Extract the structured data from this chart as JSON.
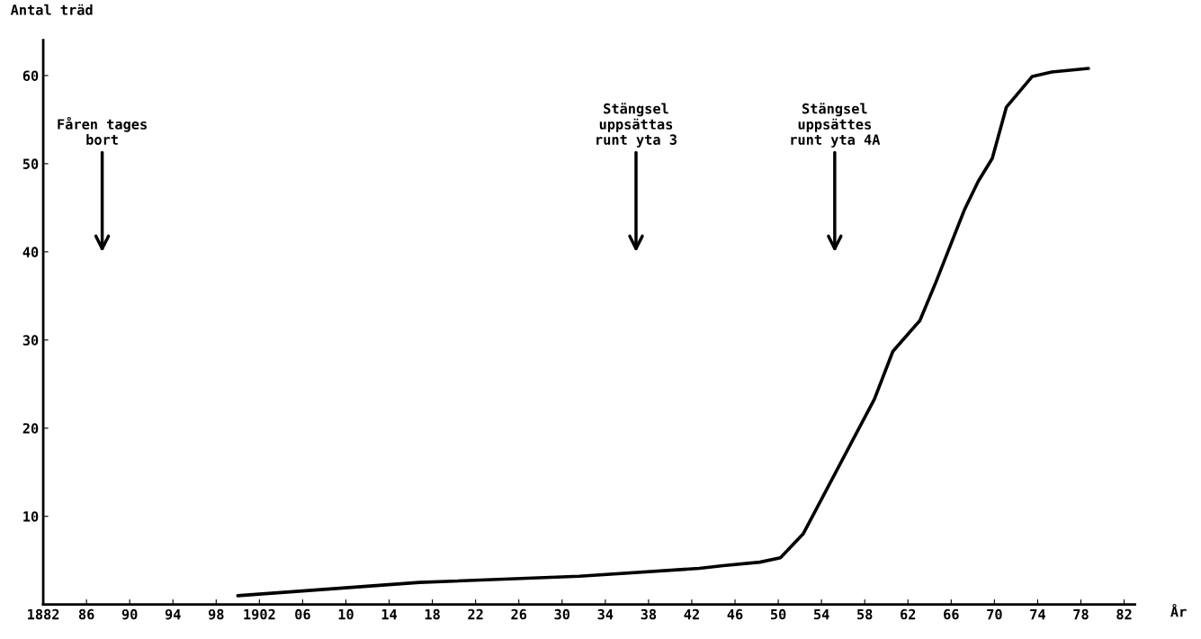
{
  "chart_data": {
    "type": "line",
    "ylabel": "Antal träd",
    "xlabel": "År",
    "x": [
      1900.0,
      1916.8,
      1931.6,
      1942.7,
      1944.9,
      1948.3,
      1950.2,
      1952.3,
      1958.9,
      1960.6,
      1963.1,
      1964.6,
      1967.2,
      1968.5,
      1969.8,
      1971.1,
      1973.5,
      1975.3,
      1978.7
    ],
    "series": [
      {
        "color": "#000000",
        "values": [
          1.0,
          2.5,
          3.2,
          4.1,
          4.4,
          4.8,
          5.3,
          8.0,
          23.3,
          28.7,
          32.2,
          36.6,
          44.7,
          48.0,
          50.6,
          56.4,
          59.9,
          60.4,
          60.8
        ]
      }
    ],
    "xlim": [
      1882,
      1983
    ],
    "ylim": [
      0,
      64
    ],
    "xticks": [
      1882,
      {
        "value": 1886,
        "label": "86"
      },
      {
        "value": 1890,
        "label": "90"
      },
      {
        "value": 1894,
        "label": "94"
      },
      {
        "value": 1898,
        "label": "98"
      },
      1902,
      {
        "value": 1906,
        "label": "06"
      },
      {
        "value": 1910,
        "label": "10"
      },
      {
        "value": 1914,
        "label": "14"
      },
      {
        "value": 1918,
        "label": "18"
      },
      {
        "value": 1922,
        "label": "22"
      },
      {
        "value": 1926,
        "label": "26"
      },
      {
        "value": 1930,
        "label": "30"
      },
      {
        "value": 1934,
        "label": "34"
      },
      {
        "value": 1938,
        "label": "38"
      },
      {
        "value": 1942,
        "label": "42"
      },
      {
        "value": 1946,
        "label": "46"
      },
      {
        "value": 1950,
        "label": "50"
      },
      {
        "value": 1954,
        "label": "54"
      },
      {
        "value": 1958,
        "label": "58"
      },
      {
        "value": 1962,
        "label": "62"
      },
      {
        "value": 1966,
        "label": "66"
      },
      {
        "value": 1970,
        "label": "70"
      },
      {
        "value": 1974,
        "label": "74"
      },
      {
        "value": 1978,
        "label": "78"
      },
      {
        "value": 1982,
        "label": "82"
      }
    ],
    "yticks": [
      {
        "value": 0,
        "label": null
      },
      10,
      20,
      30,
      40,
      50,
      60
    ],
    "annotations": [
      "Fåren tages\nbort",
      "Stängsel\nuppsättas\nrunt yta 3",
      "Stängsel\nuppsättes\nrunt yta 4A"
    ],
    "grid": false,
    "marker": "none",
    "line_style": "solid"
  }
}
